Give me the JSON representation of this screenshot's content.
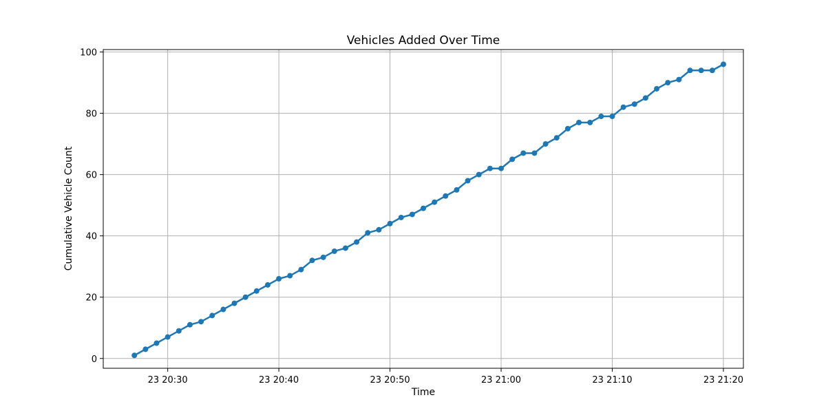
{
  "chart_data": {
    "type": "line",
    "title": "Vehicles Added Over Time",
    "xlabel": "Time",
    "ylabel": "Cumulative Vehicle Count",
    "grid": true,
    "x_start_minutes": 1707,
    "x_step_minutes": 1,
    "xlim_minutes": [
      1704.2,
      1761.8
    ],
    "ylim": [
      -3.2,
      100.8
    ],
    "x_ticks": [
      {
        "minute": 1710,
        "label": "23 20:30"
      },
      {
        "minute": 1720,
        "label": "23 20:40"
      },
      {
        "minute": 1730,
        "label": "23 20:50"
      },
      {
        "minute": 1740,
        "label": "23 21:00"
      },
      {
        "minute": 1750,
        "label": "23 21:10"
      },
      {
        "minute": 1760,
        "label": "23 21:20"
      }
    ],
    "y_ticks": [
      0,
      20,
      40,
      60,
      80,
      100
    ],
    "series": [
      {
        "name": "Cumulative Vehicle Count",
        "color": "#1f77b4",
        "values": [
          1,
          3,
          5,
          7,
          9,
          11,
          12,
          14,
          16,
          18,
          20,
          22,
          24,
          26,
          27,
          29,
          32,
          33,
          35,
          36,
          38,
          41,
          42,
          44,
          46,
          47,
          49,
          51,
          53,
          55,
          58,
          60,
          62,
          62,
          65,
          67,
          67,
          70,
          72,
          75,
          77,
          77,
          79,
          79,
          82,
          83,
          85,
          88,
          90,
          91,
          94,
          94,
          94,
          96
        ]
      }
    ]
  }
}
